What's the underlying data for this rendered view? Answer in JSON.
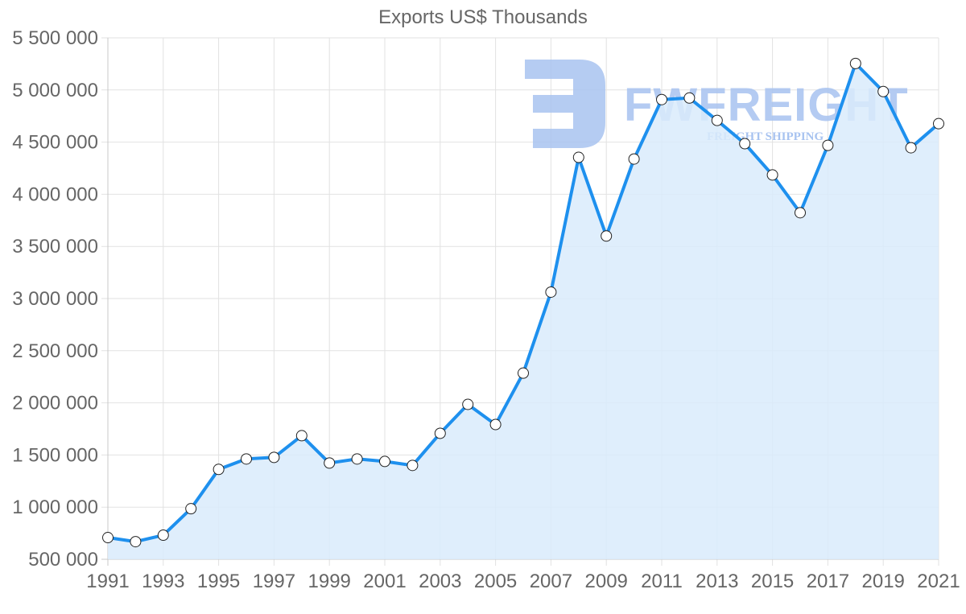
{
  "chart_data": {
    "type": "line",
    "title": "Exports US$ Thousands",
    "xlabel": "",
    "ylabel": "",
    "ylim": [
      500000,
      5500000
    ],
    "xlim": [
      1991,
      2021
    ],
    "grid": true,
    "legend": "none",
    "fill": true,
    "y_ticks": [
      500000,
      1000000,
      1500000,
      2000000,
      2500000,
      3000000,
      3500000,
      4000000,
      4500000,
      5000000,
      5500000
    ],
    "y_tick_labels": [
      "500 000",
      "1 000 000",
      "1 500 000",
      "2 000 000",
      "2 500 000",
      "3 000 000",
      "3 500 000",
      "4 000 000",
      "4 500 000",
      "5 000 000",
      "5 500 000"
    ],
    "x_tick_labels": [
      "1991",
      "1993",
      "1995",
      "1997",
      "1999",
      "2001",
      "2003",
      "2005",
      "2007",
      "2009",
      "2011",
      "2013",
      "2015",
      "2017",
      "2019",
      "2021"
    ],
    "x": [
      1991,
      1992,
      1993,
      1994,
      1995,
      1996,
      1997,
      1998,
      1999,
      2000,
      2001,
      2002,
      2003,
      2004,
      2005,
      2006,
      2007,
      2008,
      2009,
      2010,
      2011,
      2012,
      2013,
      2014,
      2015,
      2016,
      2017,
      2018,
      2019,
      2020,
      2021
    ],
    "series": [
      {
        "name": "Exports US$ Thousands",
        "color": "#1e90ee",
        "fill_color": "#d9ebfc",
        "values": [
          708000,
          669000,
          731000,
          985000,
          1362000,
          1462000,
          1477000,
          1685000,
          1423000,
          1462000,
          1438000,
          1400000,
          1708000,
          1985000,
          1792000,
          2285000,
          3062000,
          4354000,
          3600000,
          4338000,
          4908000,
          4923000,
          4708000,
          4485000,
          4185000,
          3823000,
          4469000,
          5254000,
          4985000,
          4446000,
          4677000
        ]
      }
    ]
  },
  "watermark": {
    "brand": "FWFREIGHT",
    "tagline": "FREIGHT SHIPPING"
  }
}
